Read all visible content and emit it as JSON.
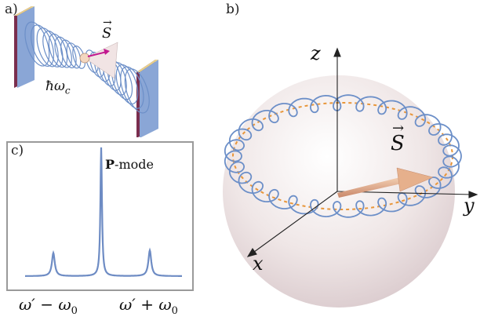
{
  "panels": {
    "a": {
      "label": "a)",
      "hbar_omega": "ħω",
      "hbar_sub": "c",
      "spin_vector": "S"
    },
    "b": {
      "label": "b)",
      "axis_x": "x",
      "axis_y": "y",
      "axis_z": "z",
      "spin_vector": "S"
    },
    "c": {
      "label": "c)",
      "peak_label_bold": "P",
      "peak_label_rest": "-mode",
      "tick_left": "ω′ − ω",
      "tick_left_sub": "0",
      "tick_right": "ω′ + ω",
      "tick_right_sub": "0"
    }
  },
  "colors": {
    "mirror_face": "#8aa6d6",
    "mirror_edge": "#e8d08a",
    "mirror_back": "#7a2e4e",
    "coil": "#6c8fc8",
    "sphere": "#e9dede",
    "precession_path": "#e8963a",
    "arrow": "#e6b08c",
    "spectrum_line": "#6e8cc4",
    "vector_a": "#c2188f"
  },
  "chart_data": {
    "type": "line",
    "peaks": [
      {
        "position": "ω′ − ω0",
        "relative_height": 0.18
      },
      {
        "position": "ω′",
        "relative_height": 1.0
      },
      {
        "position": "ω′ + ω0",
        "relative_height": 0.2
      }
    ]
  }
}
